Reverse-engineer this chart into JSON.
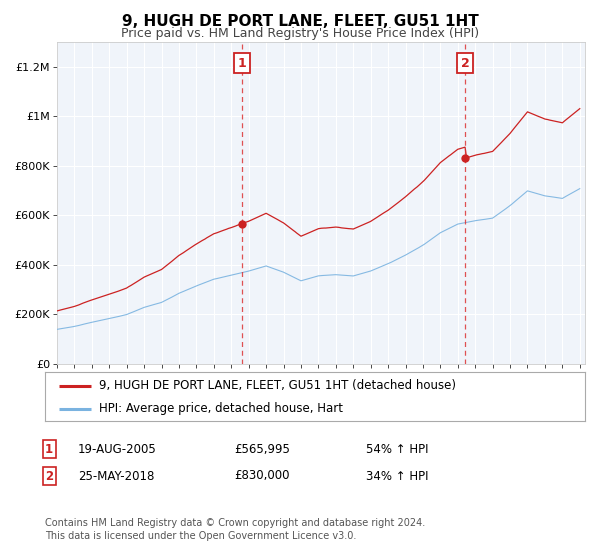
{
  "title": "9, HUGH DE PORT LANE, FLEET, GU51 1HT",
  "subtitle": "Price paid vs. HM Land Registry's House Price Index (HPI)",
  "legend_line1": "9, HUGH DE PORT LANE, FLEET, GU51 1HT (detached house)",
  "legend_line2": "HPI: Average price, detached house, Hart",
  "annotation1_label": "1",
  "annotation1_date": "19-AUG-2005",
  "annotation1_price": "£565,995",
  "annotation1_hpi": "54% ↑ HPI",
  "annotation2_label": "2",
  "annotation2_date": "25-MAY-2018",
  "annotation2_price": "£830,000",
  "annotation2_hpi": "34% ↑ HPI",
  "footer": "Contains HM Land Registry data © Crown copyright and database right 2024.\nThis data is licensed under the Open Government Licence v3.0.",
  "hpi_color": "#7ab3e0",
  "price_color": "#cc2222",
  "fig_bg": "#ffffff",
  "chart_bg": "#f0f4fa",
  "grid_color": "#ffffff",
  "ylim": [
    0,
    1300000
  ],
  "xlim_start": 1995.0,
  "xlim_end": 2025.3,
  "vline1_x": 2005.63,
  "vline2_x": 2018.42,
  "sale1_x": 2005.63,
  "sale1_y": 565995,
  "sale2_x": 2018.42,
  "sale2_y": 830000,
  "yticks": [
    0,
    200000,
    400000,
    600000,
    800000,
    1000000,
    1200000
  ],
  "ylabels": [
    "£0",
    "£200K",
    "£400K",
    "£600K",
    "£800K",
    "£1M",
    "£1.2M"
  ]
}
